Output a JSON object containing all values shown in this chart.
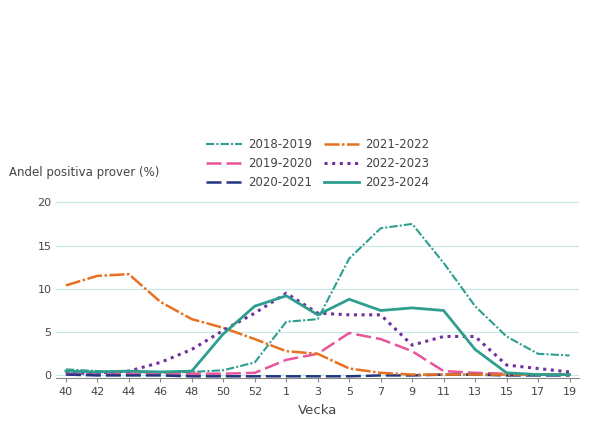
{
  "title": "",
  "ylabel": "Andel positiva prover (%)",
  "xlabel": "Vecka",
  "ylim": [
    -0.3,
    21
  ],
  "yticks": [
    0,
    5,
    10,
    15,
    20
  ],
  "x_labels": [
    "40",
    "42",
    "44",
    "46",
    "48",
    "50",
    "52",
    "1",
    "3",
    "5",
    "7",
    "9",
    "11",
    "13",
    "15",
    "17",
    "19"
  ],
  "series": [
    {
      "label": "2018-2019",
      "color": "#2E9E8F",
      "linestyle": "-.",
      "linewidth": 1.5,
      "dashes": [
        4,
        1,
        1,
        1
      ],
      "values": [
        0.7,
        0.5,
        0.4,
        0.3,
        0.4,
        0.6,
        1.5,
        6.2,
        6.5,
        13.5,
        17.0,
        17.5,
        13.0,
        8.0,
        4.5,
        2.5,
        2.3
      ]
    },
    {
      "label": "2019-2020",
      "color": "#E8559A",
      "linestyle": "--",
      "linewidth": 1.8,
      "dashes": [
        6,
        2
      ],
      "values": [
        0.2,
        0.2,
        0.2,
        0.2,
        0.2,
        0.2,
        0.3,
        1.8,
        2.5,
        4.9,
        4.2,
        2.8,
        0.5,
        0.3,
        0.2,
        0.1,
        0.1
      ]
    },
    {
      "label": "2020-2021",
      "color": "#1F3680",
      "linestyle": "--",
      "linewidth": 1.8,
      "dashes": [
        6,
        2
      ],
      "values": [
        0.1,
        0.0,
        0.0,
        0.0,
        -0.1,
        -0.1,
        -0.1,
        -0.1,
        -0.1,
        -0.1,
        0.0,
        0.0,
        0.1,
        0.1,
        0.0,
        0.0,
        0.0
      ]
    },
    {
      "label": "2021-2022",
      "color": "#E87020",
      "linestyle": "-.",
      "linewidth": 1.8,
      "dashes": [
        6,
        1,
        1,
        1
      ],
      "values": [
        10.4,
        11.5,
        11.7,
        8.5,
        6.5,
        5.5,
        4.2,
        2.8,
        2.5,
        0.8,
        0.3,
        0.1,
        0.1,
        0.1,
        0.1,
        0.1,
        0.1
      ]
    },
    {
      "label": "2022-2023",
      "color": "#7030A0",
      "linestyle": ":",
      "linewidth": 2.2,
      "dashes": [
        1,
        1.5
      ],
      "values": [
        0.2,
        0.3,
        0.5,
        1.5,
        3.0,
        5.2,
        7.2,
        9.5,
        7.2,
        7.0,
        7.0,
        3.5,
        4.5,
        4.5,
        1.2,
        0.8,
        0.4
      ]
    },
    {
      "label": "2023-2024",
      "color": "#2E9E8F",
      "linestyle": "-",
      "linewidth": 2.0,
      "dashes": null,
      "values": [
        0.5,
        0.4,
        0.5,
        0.4,
        0.5,
        4.8,
        8.0,
        9.2,
        7.0,
        8.8,
        7.5,
        7.8,
        7.5,
        3.0,
        0.3,
        0.1,
        0.1
      ]
    }
  ],
  "background_color": "#ffffff",
  "grid_color": "#c5e8e8",
  "axis_color": "#888888",
  "text_color": "#444444"
}
